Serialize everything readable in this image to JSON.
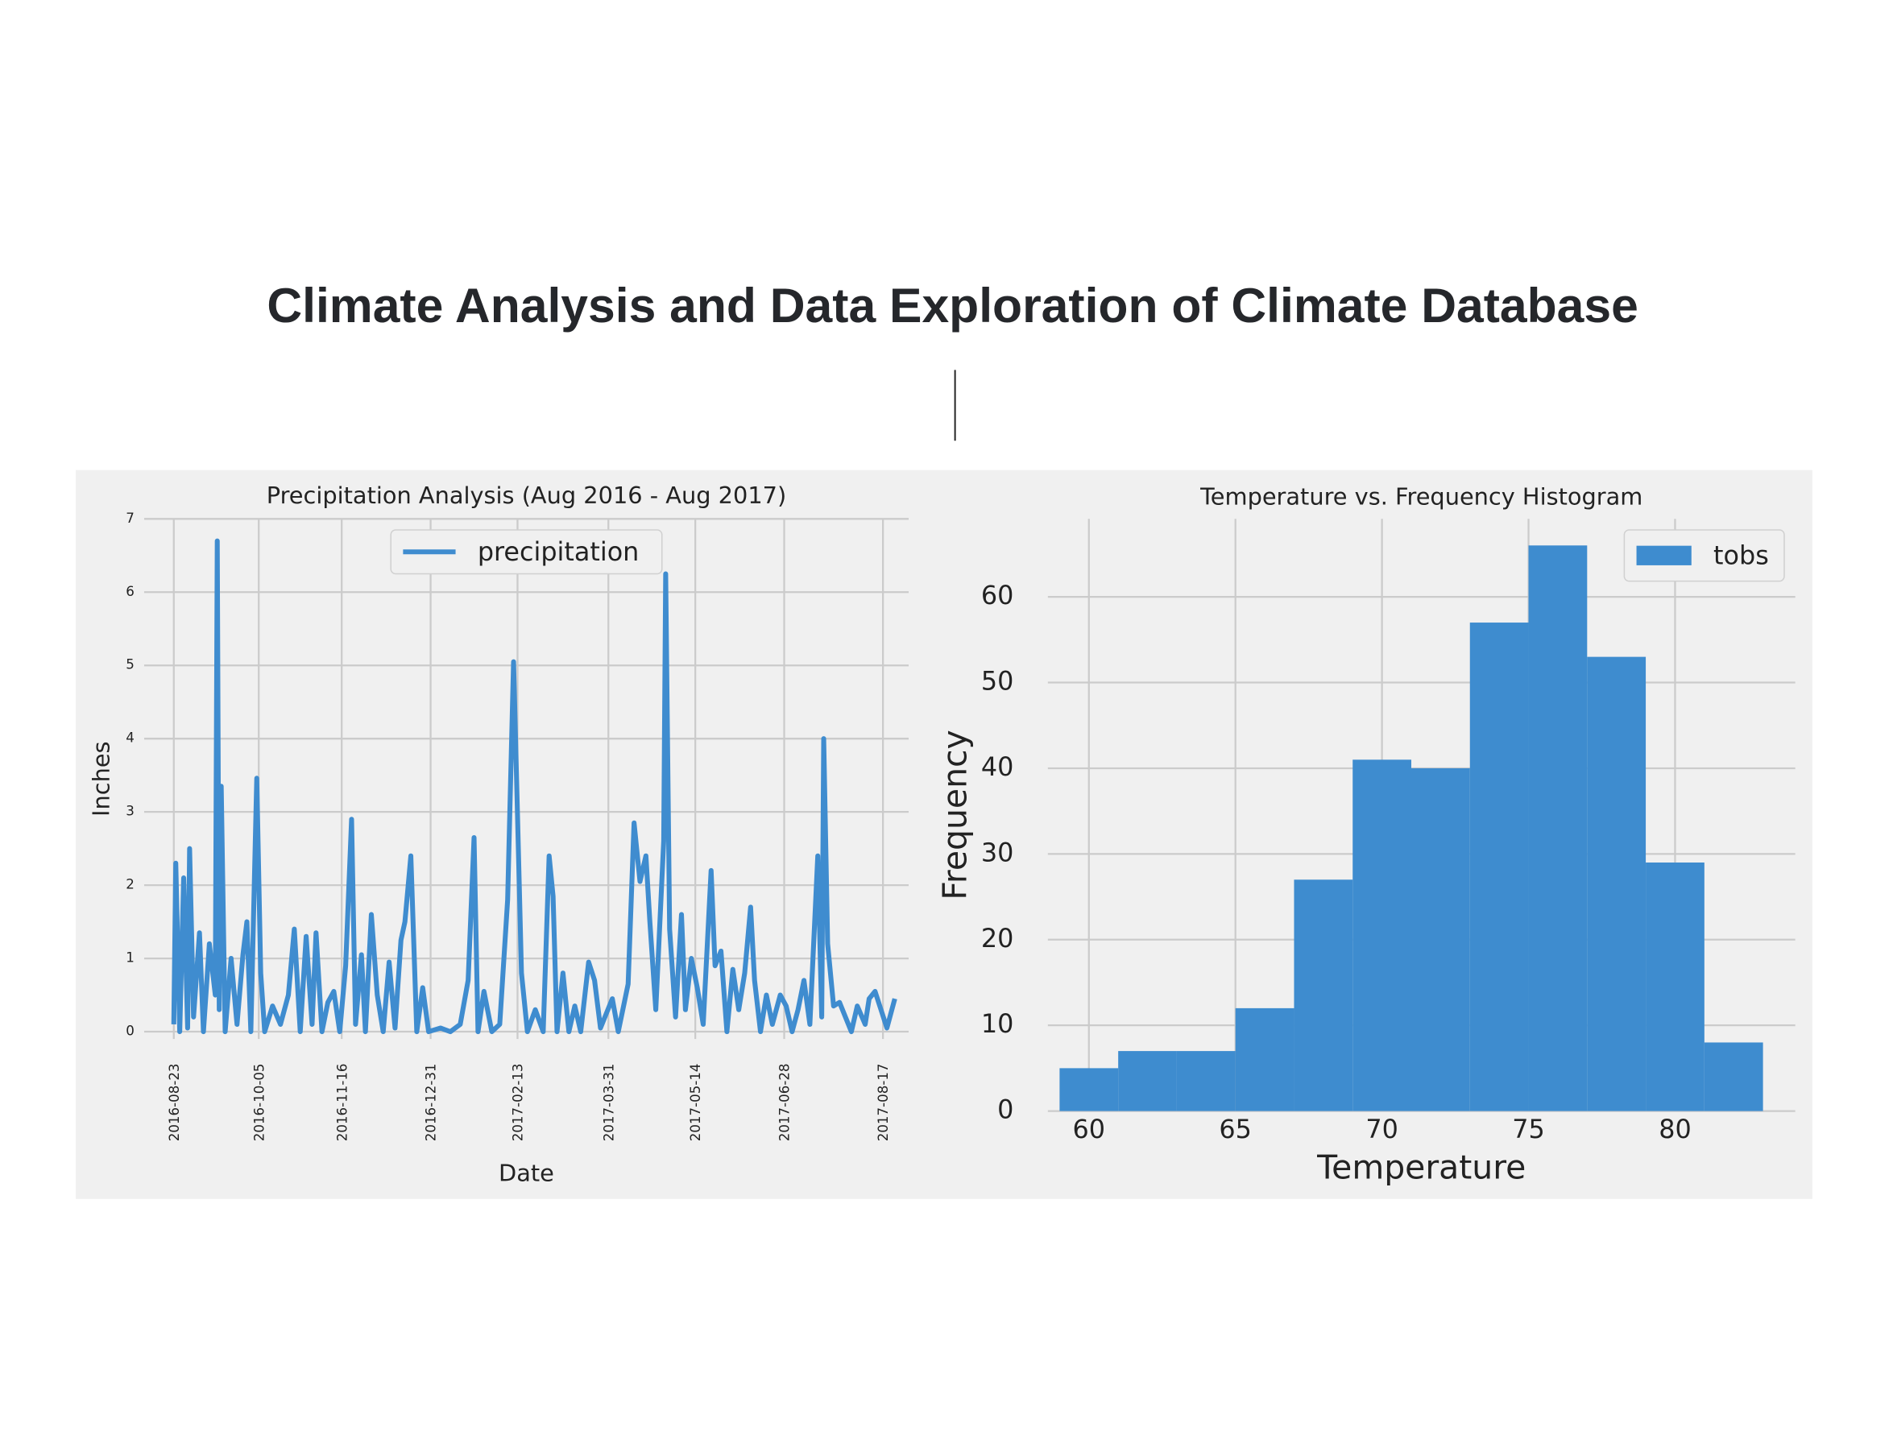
{
  "title": "Climate Analysis and Data Exploration of Climate Database",
  "chart_data": [
    {
      "type": "line",
      "title": "Precipitation Analysis (Aug 2016 - Aug 2017)",
      "x_label": "Date",
      "y_label": "Inches",
      "x": [
        "2016-08-23",
        "2016-08-24",
        "2016-08-26",
        "2016-08-28",
        "2016-08-30",
        "2016-08-31",
        "2016-09-02",
        "2016-09-05",
        "2016-09-07",
        "2016-09-10",
        "2016-09-13",
        "2016-09-14",
        "2016-09-15",
        "2016-09-16",
        "2016-09-18",
        "2016-09-21",
        "2016-09-24",
        "2016-09-27",
        "2016-09-29",
        "2016-10-01",
        "2016-10-04",
        "2016-10-06",
        "2016-10-08",
        "2016-10-12",
        "2016-10-16",
        "2016-10-20",
        "2016-10-23",
        "2016-10-26",
        "2016-10-29",
        "2016-11-01",
        "2016-11-03",
        "2016-11-06",
        "2016-11-09",
        "2016-11-12",
        "2016-11-15",
        "2016-11-18",
        "2016-11-21",
        "2016-11-23",
        "2016-11-26",
        "2016-11-28",
        "2016-12-01",
        "2016-12-04",
        "2016-12-07",
        "2016-12-10",
        "2016-12-13",
        "2016-12-16",
        "2016-12-18",
        "2016-12-21",
        "2016-12-24",
        "2016-12-27",
        "2016-12-30",
        "2017-01-05",
        "2017-01-10",
        "2017-01-15",
        "2017-01-19",
        "2017-01-22",
        "2017-01-24",
        "2017-01-27",
        "2017-01-31",
        "2017-02-04",
        "2017-02-08",
        "2017-02-11",
        "2017-02-13",
        "2017-02-15",
        "2017-02-18",
        "2017-02-22",
        "2017-02-26",
        "2017-03-01",
        "2017-03-03",
        "2017-03-05",
        "2017-03-08",
        "2017-03-11",
        "2017-03-14",
        "2017-03-17",
        "2017-03-21",
        "2017-03-24",
        "2017-03-27",
        "2017-03-30",
        "2017-04-02",
        "2017-04-05",
        "2017-04-10",
        "2017-04-13",
        "2017-04-16",
        "2017-04-19",
        "2017-04-21",
        "2017-04-24",
        "2017-04-28",
        "2017-04-29",
        "2017-05-01",
        "2017-05-04",
        "2017-05-07",
        "2017-05-09",
        "2017-05-12",
        "2017-05-15",
        "2017-05-18",
        "2017-05-22",
        "2017-05-24",
        "2017-05-27",
        "2017-05-30",
        "2017-06-02",
        "2017-06-05",
        "2017-06-08",
        "2017-06-11",
        "2017-06-13",
        "2017-06-16",
        "2017-06-19",
        "2017-06-22",
        "2017-06-26",
        "2017-06-29",
        "2017-07-02",
        "2017-07-05",
        "2017-07-08",
        "2017-07-11",
        "2017-07-15",
        "2017-07-17",
        "2017-07-18",
        "2017-07-20",
        "2017-07-23",
        "2017-07-26",
        "2017-07-29",
        "2017-08-01",
        "2017-08-04",
        "2017-08-08",
        "2017-08-10",
        "2017-08-13",
        "2017-08-16",
        "2017-08-19",
        "2017-08-23"
      ],
      "series": [
        {
          "name": "precipitation",
          "color": "#3f8ccf",
          "values": [
            0.1,
            2.3,
            0.0,
            2.1,
            0.05,
            2.5,
            0.2,
            1.35,
            0.0,
            1.2,
            0.5,
            6.7,
            0.3,
            3.35,
            0.0,
            1.0,
            0.1,
            1.05,
            1.5,
            0.0,
            3.46,
            0.8,
            0.0,
            0.35,
            0.1,
            0.5,
            1.4,
            0.0,
            1.3,
            0.1,
            1.35,
            0.0,
            0.4,
            0.55,
            0.0,
            0.9,
            2.9,
            0.1,
            1.05,
            0.0,
            1.6,
            0.5,
            0.0,
            0.95,
            0.05,
            1.25,
            1.5,
            2.4,
            0.0,
            0.6,
            0.0,
            0.05,
            0.0,
            0.1,
            0.7,
            2.65,
            0.0,
            0.55,
            0.0,
            0.1,
            1.8,
            5.05,
            2.95,
            0.8,
            0.0,
            0.3,
            0.0,
            2.4,
            1.85,
            0.0,
            0.8,
            0.0,
            0.35,
            0.0,
            0.95,
            0.7,
            0.05,
            0.25,
            0.45,
            0.0,
            0.65,
            2.85,
            2.05,
            2.4,
            1.5,
            0.3,
            2.6,
            6.25,
            1.4,
            0.2,
            1.6,
            0.3,
            1.0,
            0.6,
            0.1,
            2.2,
            0.9,
            1.1,
            0.0,
            0.85,
            0.3,
            0.8,
            1.7,
            0.7,
            0.0,
            0.5,
            0.1,
            0.5,
            0.35,
            0.0,
            0.3,
            0.7,
            0.1,
            2.4,
            0.2,
            4.0,
            1.2,
            0.35,
            0.4,
            0.2,
            0.0,
            0.35,
            0.1,
            0.45,
            0.55,
            0.3,
            0.05,
            0.45
          ]
        }
      ],
      "xlim": [
        "2016-08-08",
        "2017-08-30"
      ],
      "xticks": [
        "2016-08-23",
        "2016-10-05",
        "2016-11-16",
        "2016-12-31",
        "2017-02-13",
        "2017-03-31",
        "2017-05-14",
        "2017-06-28",
        "2017-08-17"
      ],
      "ylim": [
        -0.1,
        7
      ],
      "yticks": [
        0,
        1,
        2,
        3,
        4,
        5,
        6,
        7
      ],
      "grid": true,
      "legend": "upper center"
    },
    {
      "type": "histogram",
      "title": "Temperature vs. Frequency Histogram",
      "x_label": "Temperature",
      "y_label": "Frequency",
      "bins": [
        59,
        61,
        63,
        65,
        67,
        69,
        71,
        73,
        75,
        77,
        79,
        81,
        83
      ],
      "series": [
        {
          "name": "tobs",
          "color": "#3e8ccf",
          "values": [
            5,
            7,
            7,
            12,
            27,
            41,
            40,
            57,
            66,
            53,
            29,
            8
          ]
        }
      ],
      "xlim": [
        58.6,
        84.1
      ],
      "xticks": [
        60,
        65,
        70,
        75,
        80
      ],
      "ylim": [
        0,
        69.1
      ],
      "yticks": [
        0,
        10,
        20,
        30,
        40,
        50,
        60
      ],
      "grid": true,
      "legend": "upper right"
    }
  ]
}
